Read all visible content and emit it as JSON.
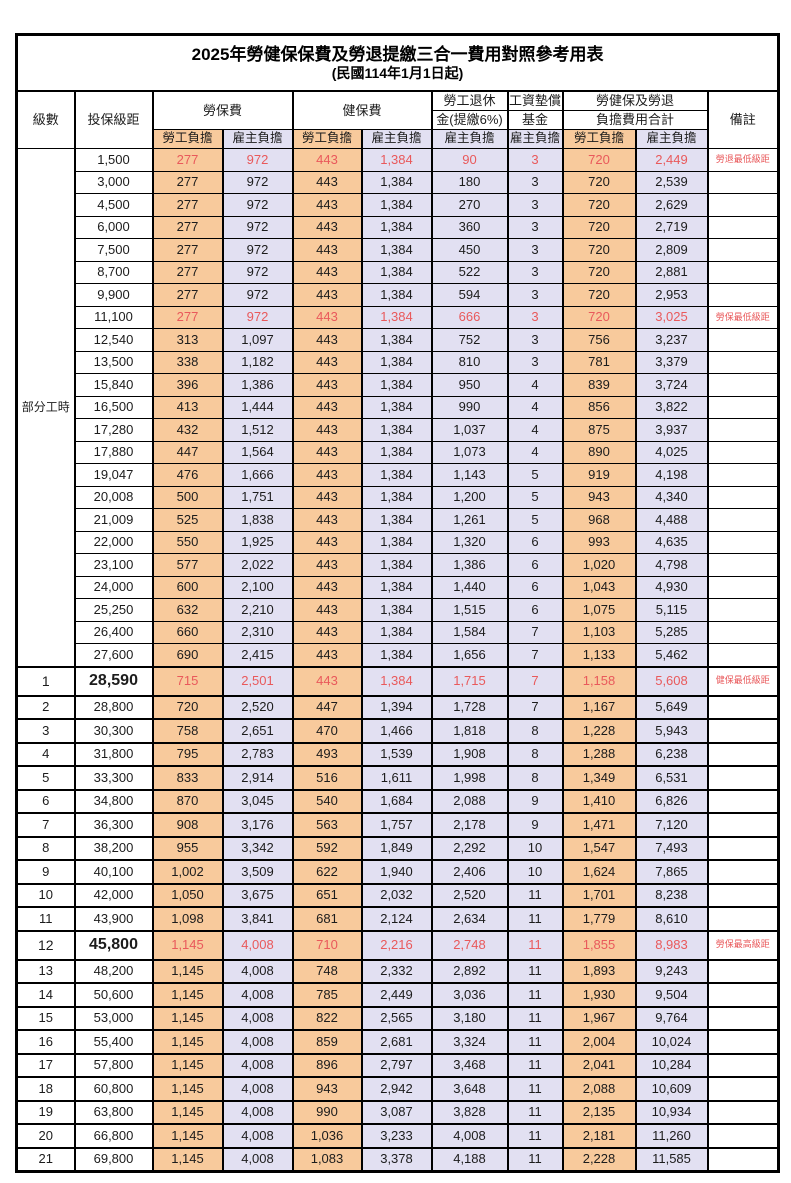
{
  "header": {
    "title": "2025年勞健保保費及勞退提繳三合一費用對照參考用表",
    "subtitle": "(民國114年1月1日起)"
  },
  "columns": {
    "level": "級數",
    "bracket": "投保級距",
    "labor": "勞保費",
    "health": "健保費",
    "pension_l1": "勞工退休",
    "pension_l2": "金(提繳6%)",
    "fund_l1": "工資墊償",
    "fund_l2": "基金",
    "total_l1": "勞健保及勞退",
    "total_l2": "負擔費用合計",
    "remark": "備註",
    "employee": "勞工負擔",
    "employer": "雇主負擔"
  },
  "group_label": "部分工時",
  "colors": {
    "employee_bg": "#F8CA9C",
    "employer_bg": "#E2E0F2",
    "highlight_text": "#E9595B"
  },
  "table": {
    "group_rowspan": 23,
    "value_col_names": [
      "labor-employee",
      "labor-employer",
      "health-employee",
      "health-employer",
      "pension-employer",
      "fund-employer",
      "total-employee",
      "total-employer"
    ],
    "rows": [
      {
        "level": "",
        "bracket": "1,500",
        "values": [
          "277",
          "972",
          "443",
          "1,384",
          "90",
          "3",
          "720",
          "2,449"
        ],
        "remark": "勞退最低級距",
        "highlight": true,
        "big": false
      },
      {
        "level": "",
        "bracket": "3,000",
        "values": [
          "277",
          "972",
          "443",
          "1,384",
          "180",
          "3",
          "720",
          "2,539"
        ],
        "remark": "",
        "highlight": false,
        "big": false
      },
      {
        "level": "",
        "bracket": "4,500",
        "values": [
          "277",
          "972",
          "443",
          "1,384",
          "270",
          "3",
          "720",
          "2,629"
        ],
        "remark": "",
        "highlight": false,
        "big": false
      },
      {
        "level": "",
        "bracket": "6,000",
        "values": [
          "277",
          "972",
          "443",
          "1,384",
          "360",
          "3",
          "720",
          "2,719"
        ],
        "remark": "",
        "highlight": false,
        "big": false
      },
      {
        "level": "",
        "bracket": "7,500",
        "values": [
          "277",
          "972",
          "443",
          "1,384",
          "450",
          "3",
          "720",
          "2,809"
        ],
        "remark": "",
        "highlight": false,
        "big": false
      },
      {
        "level": "",
        "bracket": "8,700",
        "values": [
          "277",
          "972",
          "443",
          "1,384",
          "522",
          "3",
          "720",
          "2,881"
        ],
        "remark": "",
        "highlight": false,
        "big": false
      },
      {
        "level": "",
        "bracket": "9,900",
        "values": [
          "277",
          "972",
          "443",
          "1,384",
          "594",
          "3",
          "720",
          "2,953"
        ],
        "remark": "",
        "highlight": false,
        "big": false
      },
      {
        "level": "",
        "bracket": "11,100",
        "values": [
          "277",
          "972",
          "443",
          "1,384",
          "666",
          "3",
          "720",
          "3,025"
        ],
        "remark": "勞保最低級距",
        "highlight": true,
        "big": false
      },
      {
        "level": "",
        "bracket": "12,540",
        "values": [
          "313",
          "1,097",
          "443",
          "1,384",
          "752",
          "3",
          "756",
          "3,237"
        ],
        "remark": "",
        "highlight": false,
        "big": false
      },
      {
        "level": "",
        "bracket": "13,500",
        "values": [
          "338",
          "1,182",
          "443",
          "1,384",
          "810",
          "3",
          "781",
          "3,379"
        ],
        "remark": "",
        "highlight": false,
        "big": false
      },
      {
        "level": "",
        "bracket": "15,840",
        "values": [
          "396",
          "1,386",
          "443",
          "1,384",
          "950",
          "4",
          "839",
          "3,724"
        ],
        "remark": "",
        "highlight": false,
        "big": false
      },
      {
        "level": "",
        "bracket": "16,500",
        "values": [
          "413",
          "1,444",
          "443",
          "1,384",
          "990",
          "4",
          "856",
          "3,822"
        ],
        "remark": "",
        "highlight": false,
        "big": false
      },
      {
        "level": "",
        "bracket": "17,280",
        "values": [
          "432",
          "1,512",
          "443",
          "1,384",
          "1,037",
          "4",
          "875",
          "3,937"
        ],
        "remark": "",
        "highlight": false,
        "big": false
      },
      {
        "level": "",
        "bracket": "17,880",
        "values": [
          "447",
          "1,564",
          "443",
          "1,384",
          "1,073",
          "4",
          "890",
          "4,025"
        ],
        "remark": "",
        "highlight": false,
        "big": false
      },
      {
        "level": "",
        "bracket": "19,047",
        "values": [
          "476",
          "1,666",
          "443",
          "1,384",
          "1,143",
          "5",
          "919",
          "4,198"
        ],
        "remark": "",
        "highlight": false,
        "big": false
      },
      {
        "level": "",
        "bracket": "20,008",
        "values": [
          "500",
          "1,751",
          "443",
          "1,384",
          "1,200",
          "5",
          "943",
          "4,340"
        ],
        "remark": "",
        "highlight": false,
        "big": false
      },
      {
        "level": "",
        "bracket": "21,009",
        "values": [
          "525",
          "1,838",
          "443",
          "1,384",
          "1,261",
          "5",
          "968",
          "4,488"
        ],
        "remark": "",
        "highlight": false,
        "big": false
      },
      {
        "level": "",
        "bracket": "22,000",
        "values": [
          "550",
          "1,925",
          "443",
          "1,384",
          "1,320",
          "6",
          "993",
          "4,635"
        ],
        "remark": "",
        "highlight": false,
        "big": false
      },
      {
        "level": "",
        "bracket": "23,100",
        "values": [
          "577",
          "2,022",
          "443",
          "1,384",
          "1,386",
          "6",
          "1,020",
          "4,798"
        ],
        "remark": "",
        "highlight": false,
        "big": false
      },
      {
        "level": "",
        "bracket": "24,000",
        "values": [
          "600",
          "2,100",
          "443",
          "1,384",
          "1,440",
          "6",
          "1,043",
          "4,930"
        ],
        "remark": "",
        "highlight": false,
        "big": false
      },
      {
        "level": "",
        "bracket": "25,250",
        "values": [
          "632",
          "2,210",
          "443",
          "1,384",
          "1,515",
          "6",
          "1,075",
          "5,115"
        ],
        "remark": "",
        "highlight": false,
        "big": false
      },
      {
        "level": "",
        "bracket": "26,400",
        "values": [
          "660",
          "2,310",
          "443",
          "1,384",
          "1,584",
          "7",
          "1,103",
          "5,285"
        ],
        "remark": "",
        "highlight": false,
        "big": false
      },
      {
        "level": "",
        "bracket": "27,600",
        "values": [
          "690",
          "2,415",
          "443",
          "1,384",
          "1,656",
          "7",
          "1,133",
          "5,462"
        ],
        "remark": "",
        "highlight": false,
        "big": false
      },
      {
        "level": "1",
        "bracket": "28,590",
        "values": [
          "715",
          "2,501",
          "443",
          "1,384",
          "1,715",
          "7",
          "1,158",
          "5,608"
        ],
        "remark": "健保最低級距",
        "highlight": true,
        "big": true
      },
      {
        "level": "2",
        "bracket": "28,800",
        "values": [
          "720",
          "2,520",
          "447",
          "1,394",
          "1,728",
          "7",
          "1,167",
          "5,649"
        ],
        "remark": "",
        "highlight": false,
        "big": false
      },
      {
        "level": "3",
        "bracket": "30,300",
        "values": [
          "758",
          "2,651",
          "470",
          "1,466",
          "1,818",
          "8",
          "1,228",
          "5,943"
        ],
        "remark": "",
        "highlight": false,
        "big": false
      },
      {
        "level": "4",
        "bracket": "31,800",
        "values": [
          "795",
          "2,783",
          "493",
          "1,539",
          "1,908",
          "8",
          "1,288",
          "6,238"
        ],
        "remark": "",
        "highlight": false,
        "big": false
      },
      {
        "level": "5",
        "bracket": "33,300",
        "values": [
          "833",
          "2,914",
          "516",
          "1,611",
          "1,998",
          "8",
          "1,349",
          "6,531"
        ],
        "remark": "",
        "highlight": false,
        "big": false
      },
      {
        "level": "6",
        "bracket": "34,800",
        "values": [
          "870",
          "3,045",
          "540",
          "1,684",
          "2,088",
          "9",
          "1,410",
          "6,826"
        ],
        "remark": "",
        "highlight": false,
        "big": false
      },
      {
        "level": "7",
        "bracket": "36,300",
        "values": [
          "908",
          "3,176",
          "563",
          "1,757",
          "2,178",
          "9",
          "1,471",
          "7,120"
        ],
        "remark": "",
        "highlight": false,
        "big": false
      },
      {
        "level": "8",
        "bracket": "38,200",
        "values": [
          "955",
          "3,342",
          "592",
          "1,849",
          "2,292",
          "10",
          "1,547",
          "7,493"
        ],
        "remark": "",
        "highlight": false,
        "big": false
      },
      {
        "level": "9",
        "bracket": "40,100",
        "values": [
          "1,002",
          "3,509",
          "622",
          "1,940",
          "2,406",
          "10",
          "1,624",
          "7,865"
        ],
        "remark": "",
        "highlight": false,
        "big": false
      },
      {
        "level": "10",
        "bracket": "42,000",
        "values": [
          "1,050",
          "3,675",
          "651",
          "2,032",
          "2,520",
          "11",
          "1,701",
          "8,238"
        ],
        "remark": "",
        "highlight": false,
        "big": false
      },
      {
        "level": "11",
        "bracket": "43,900",
        "values": [
          "1,098",
          "3,841",
          "681",
          "2,124",
          "2,634",
          "11",
          "1,779",
          "8,610"
        ],
        "remark": "",
        "highlight": false,
        "big": false
      },
      {
        "level": "12",
        "bracket": "45,800",
        "values": [
          "1,145",
          "4,008",
          "710",
          "2,216",
          "2,748",
          "11",
          "1,855",
          "8,983"
        ],
        "remark": "勞保最高級距",
        "highlight": true,
        "big": true
      },
      {
        "level": "13",
        "bracket": "48,200",
        "values": [
          "1,145",
          "4,008",
          "748",
          "2,332",
          "2,892",
          "11",
          "1,893",
          "9,243"
        ],
        "remark": "",
        "highlight": false,
        "big": false
      },
      {
        "level": "14",
        "bracket": "50,600",
        "values": [
          "1,145",
          "4,008",
          "785",
          "2,449",
          "3,036",
          "11",
          "1,930",
          "9,504"
        ],
        "remark": "",
        "highlight": false,
        "big": false
      },
      {
        "level": "15",
        "bracket": "53,000",
        "values": [
          "1,145",
          "4,008",
          "822",
          "2,565",
          "3,180",
          "11",
          "1,967",
          "9,764"
        ],
        "remark": "",
        "highlight": false,
        "big": false
      },
      {
        "level": "16",
        "bracket": "55,400",
        "values": [
          "1,145",
          "4,008",
          "859",
          "2,681",
          "3,324",
          "11",
          "2,004",
          "10,024"
        ],
        "remark": "",
        "highlight": false,
        "big": false
      },
      {
        "level": "17",
        "bracket": "57,800",
        "values": [
          "1,145",
          "4,008",
          "896",
          "2,797",
          "3,468",
          "11",
          "2,041",
          "10,284"
        ],
        "remark": "",
        "highlight": false,
        "big": false
      },
      {
        "level": "18",
        "bracket": "60,800",
        "values": [
          "1,145",
          "4,008",
          "943",
          "2,942",
          "3,648",
          "11",
          "2,088",
          "10,609"
        ],
        "remark": "",
        "highlight": false,
        "big": false
      },
      {
        "level": "19",
        "bracket": "63,800",
        "values": [
          "1,145",
          "4,008",
          "990",
          "3,087",
          "3,828",
          "11",
          "2,135",
          "10,934"
        ],
        "remark": "",
        "highlight": false,
        "big": false
      },
      {
        "level": "20",
        "bracket": "66,800",
        "values": [
          "1,145",
          "4,008",
          "1,036",
          "3,233",
          "4,008",
          "11",
          "2,181",
          "11,260"
        ],
        "remark": "",
        "highlight": false,
        "big": false
      },
      {
        "level": "21",
        "bracket": "69,800",
        "values": [
          "1,145",
          "4,008",
          "1,083",
          "3,378",
          "4,188",
          "11",
          "2,228",
          "11,585"
        ],
        "remark": "",
        "highlight": false,
        "big": false
      }
    ]
  }
}
